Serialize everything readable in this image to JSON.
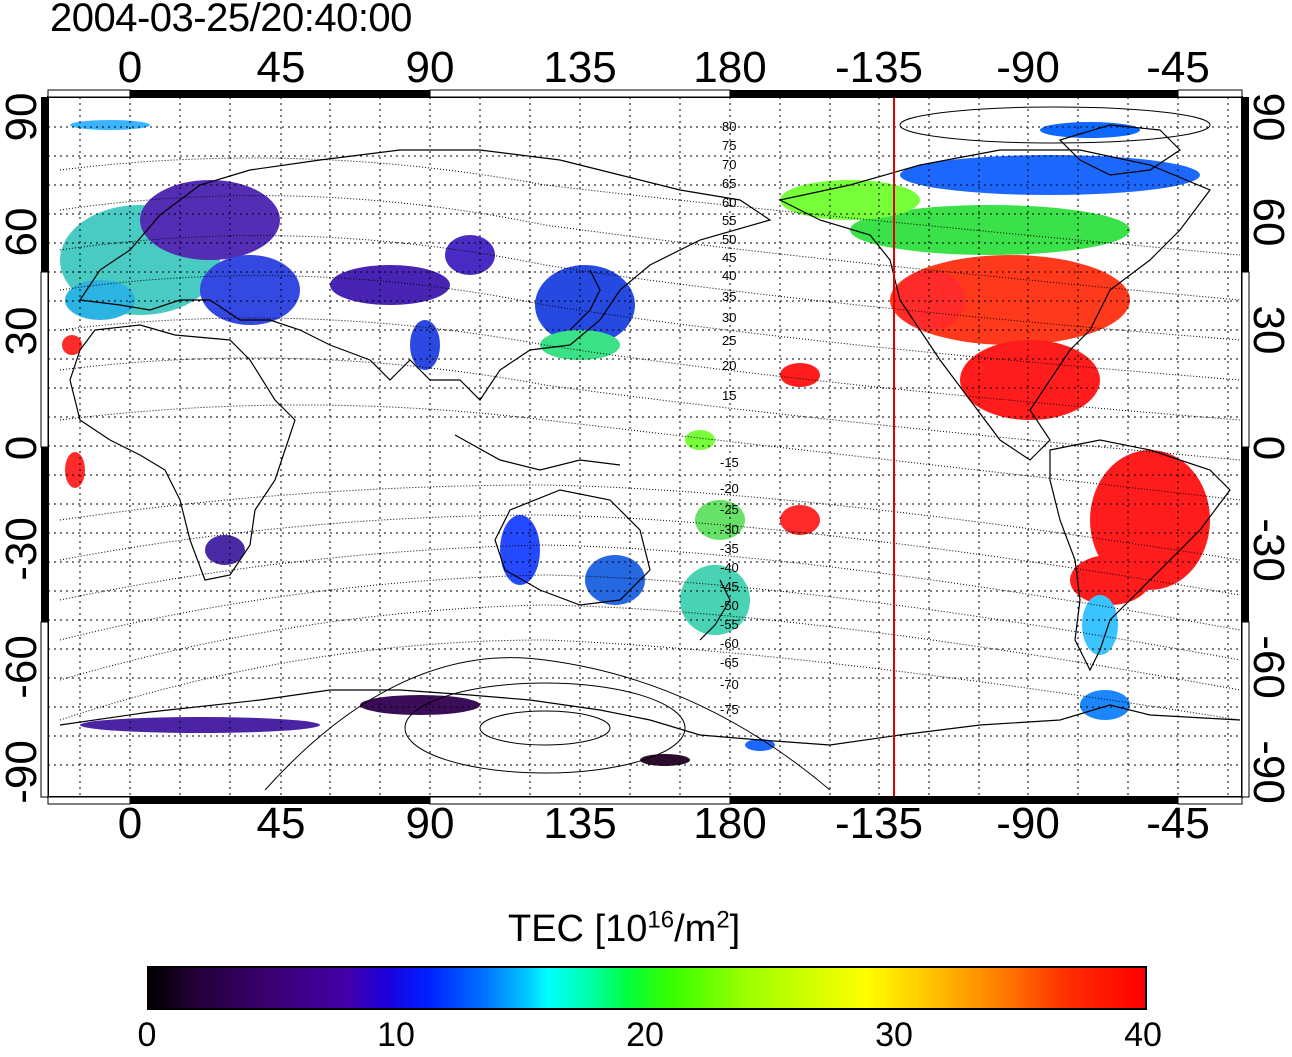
{
  "title": "2004-03-25/20:40:00",
  "lon_ticks": [
    "0",
    "45",
    "90",
    "135",
    "180",
    "-135",
    "-90",
    "-45"
  ],
  "lat_ticks_left": [
    "90",
    "60",
    "30",
    "0",
    "-30",
    "-60",
    "-90"
  ],
  "lat_ticks_right": [
    "90",
    "60",
    "30",
    "0",
    "-30",
    "-60",
    "-90"
  ],
  "contour_labels": [
    "80",
    "75",
    "70",
    "65",
    "60",
    "55",
    "50",
    "45",
    "40",
    "35",
    "30",
    "25",
    "20",
    "15",
    "-15",
    "-20",
    "-25",
    "-30",
    "-35",
    "-40",
    "-45",
    "-50",
    "-55",
    "-60",
    "-65",
    "-70",
    "-75"
  ],
  "colorbar": {
    "title_prefix": "TEC  [10",
    "title_exp1": "16",
    "title_mid": "/m",
    "title_exp2": "2",
    "title_suffix": "]",
    "ticks": [
      "0",
      "10",
      "20",
      "30",
      "40"
    ],
    "range": [
      0,
      40
    ]
  },
  "colors": {
    "terminator_line": "#e00000",
    "coastline": "#000000",
    "grid": "#000000"
  }
}
